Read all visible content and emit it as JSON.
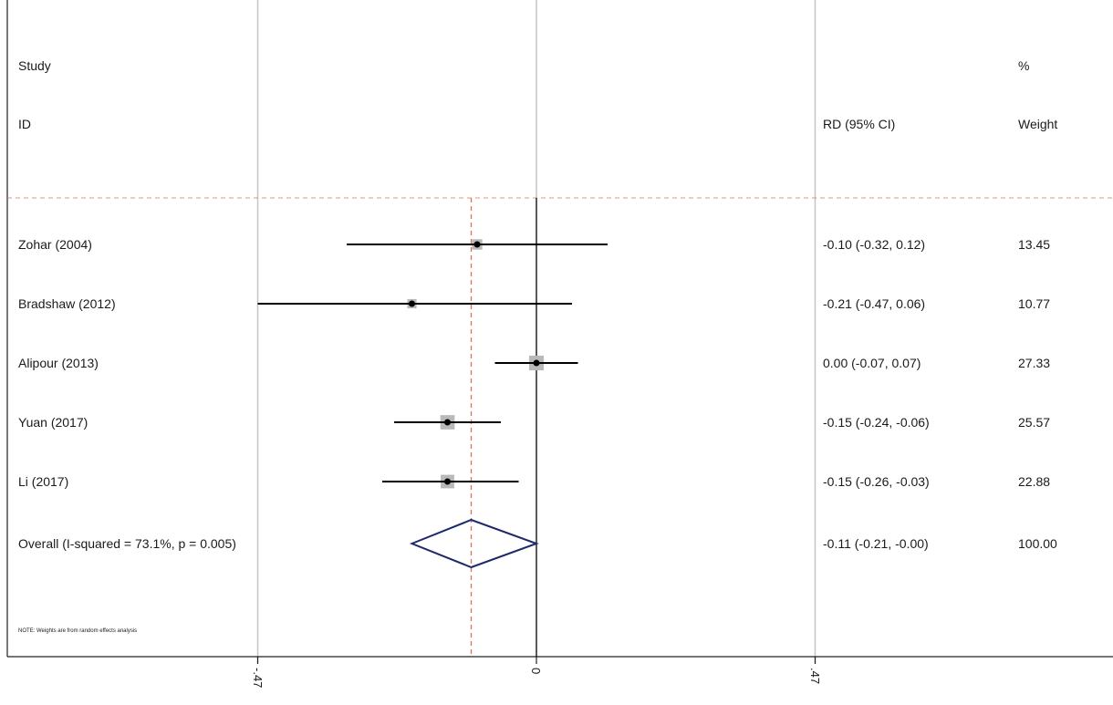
{
  "header": {
    "study_line1": "Study",
    "study_line2": "ID",
    "effect_header": "RD (95% CI)",
    "weight_line1": "%",
    "weight_line2": "Weight"
  },
  "note": "NOTE: Weights are from random effects analysis",
  "colors": {
    "ci_line": "#000000",
    "weight_box": "#b9b9b9",
    "diamond": "#1f2a6b",
    "overall_line": "#d9745a",
    "grid": "#c9c4c0",
    "frame": "#222222"
  },
  "chart_data": {
    "type": "forest",
    "measure": "RD",
    "null_value": 0,
    "xlim": [
      -0.47,
      0.47
    ],
    "xticks": [
      -0.47,
      0,
      0.47
    ],
    "xtick_labels": [
      "-.47",
      "0",
      ".47"
    ],
    "studies": [
      {
        "label": "Zohar (2004)",
        "effect": -0.1,
        "lower": -0.32,
        "upper": 0.12,
        "ci_text": "-0.10 (-0.32, 0.12)",
        "weight": 13.45,
        "weight_text": "13.45"
      },
      {
        "label": "Bradshaw (2012)",
        "effect": -0.21,
        "lower": -0.47,
        "upper": 0.06,
        "ci_text": "-0.21 (-0.47, 0.06)",
        "weight": 10.77,
        "weight_text": "10.77"
      },
      {
        "label": "Alipour (2013)",
        "effect": 0.0,
        "lower": -0.07,
        "upper": 0.07,
        "ci_text": "0.00 (-0.07, 0.07)",
        "weight": 27.33,
        "weight_text": "27.33"
      },
      {
        "label": "Yuan (2017)",
        "effect": -0.15,
        "lower": -0.24,
        "upper": -0.06,
        "ci_text": "-0.15 (-0.24, -0.06)",
        "weight": 25.57,
        "weight_text": "25.57"
      },
      {
        "label": "Li (2017)",
        "effect": -0.15,
        "lower": -0.26,
        "upper": -0.03,
        "ci_text": "-0.15 (-0.26, -0.03)",
        "weight": 22.88,
        "weight_text": "22.88"
      }
    ],
    "overall": {
      "label": "Overall  (I-squared = 73.1%, p = 0.005)",
      "effect": -0.11,
      "lower": -0.21,
      "upper": -0.0,
      "ci_text": "-0.11 (-0.21, -0.00)",
      "weight": 100.0,
      "weight_text": "100.00",
      "i_squared": 73.1,
      "p_value": 0.005
    }
  }
}
